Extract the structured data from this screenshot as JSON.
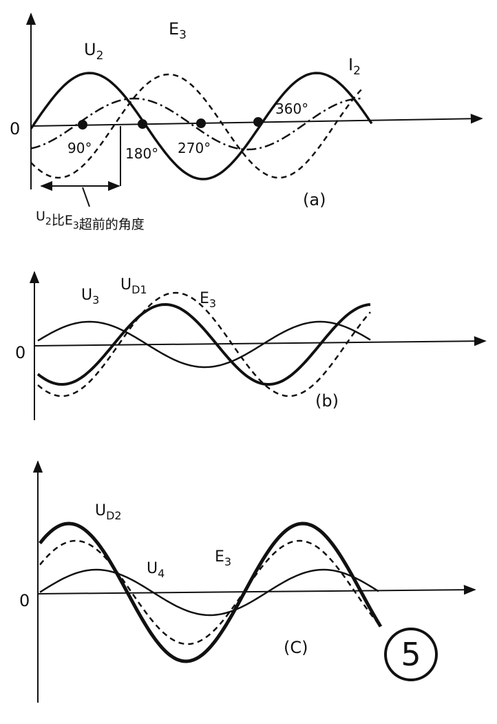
{
  "panel_a": {
    "axis_origin": "0",
    "curve_labels": [
      {
        "text": "U",
        "sub": "2"
      },
      {
        "text": "E",
        "sub": "3"
      },
      {
        "text": "I",
        "sub": "2"
      }
    ],
    "angle_labels": [
      "90°",
      "180°",
      "270°",
      "360°"
    ],
    "caption": "(a)",
    "note": [
      {
        "text": "U",
        "sub": "2"
      },
      {
        "text": "比E",
        "sub": "3"
      },
      {
        "text": "超前的角度"
      }
    ]
  },
  "panel_b": {
    "axis_origin": "0",
    "curve_labels": [
      {
        "text": "U",
        "sub": "3"
      },
      {
        "text": "U",
        "sub": "D1"
      },
      {
        "text": "E",
        "sub": "3"
      }
    ],
    "caption": "(b)"
  },
  "panel_c": {
    "axis_origin": "0",
    "curve_labels": [
      {
        "text": "U",
        "sub": "D2"
      },
      {
        "text": "U",
        "sub": "4"
      },
      {
        "text": "E",
        "sub": "3"
      }
    ],
    "caption": "(C)"
  },
  "badge": "5"
}
